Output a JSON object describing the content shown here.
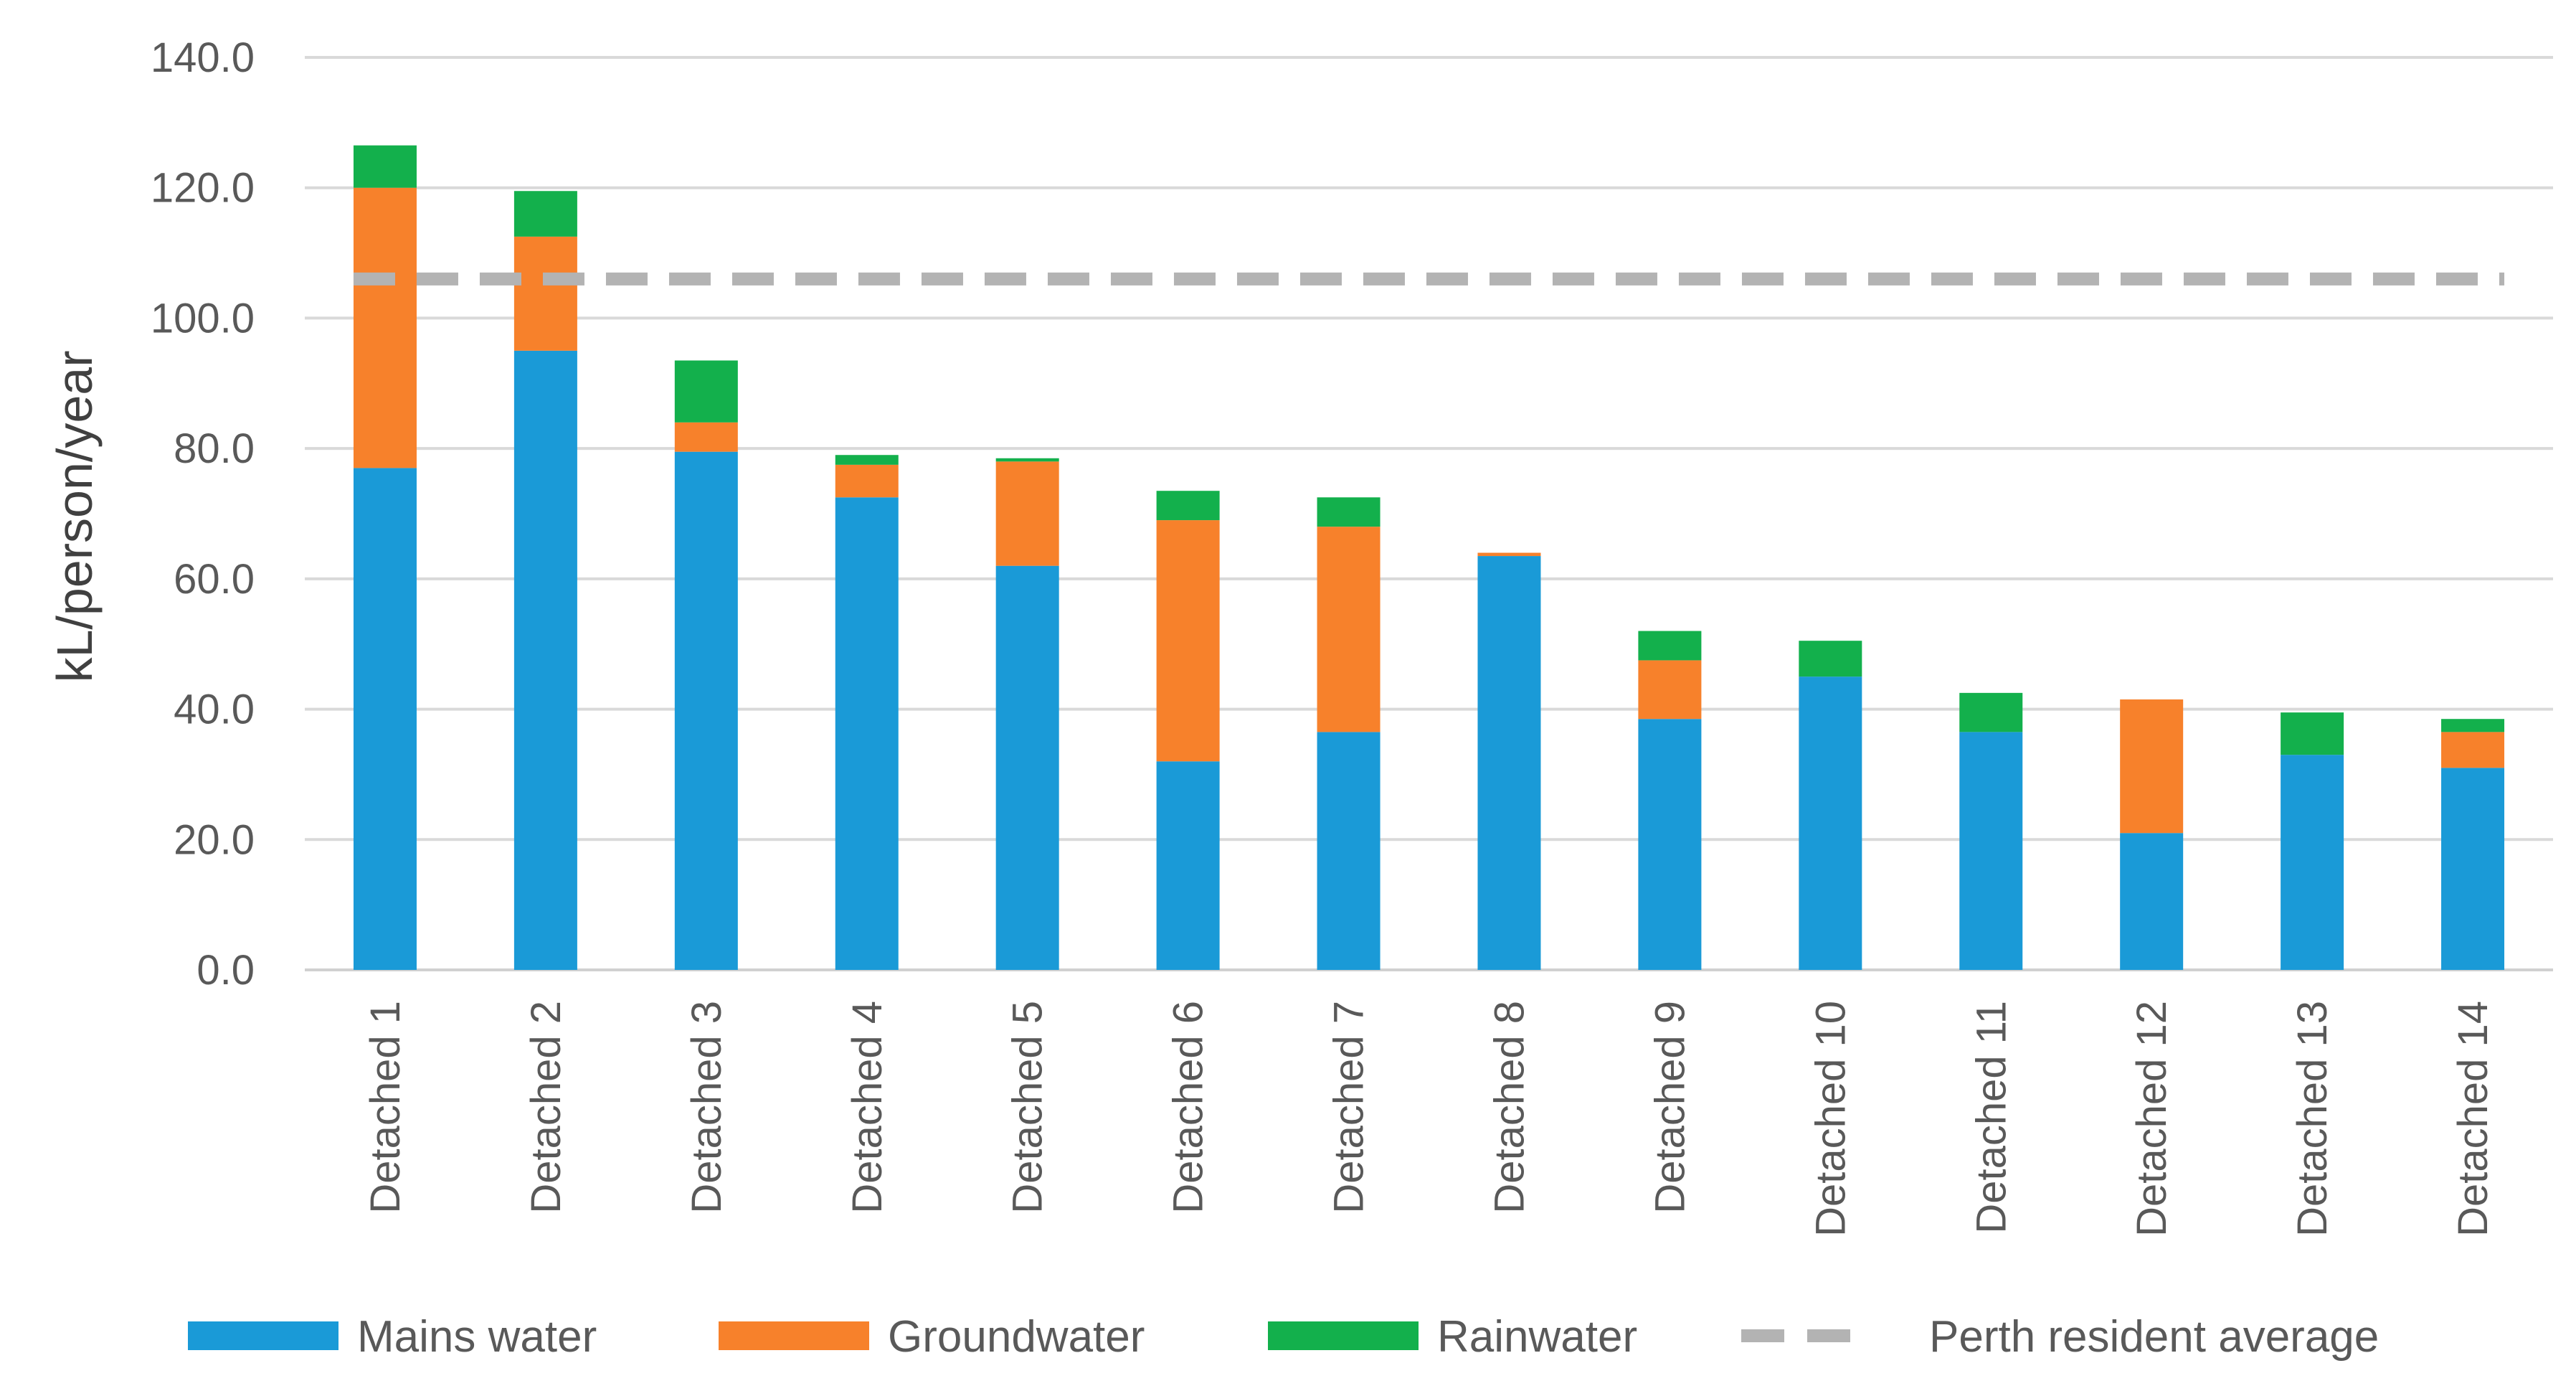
{
  "chart_data": {
    "type": "bar",
    "stacked": true,
    "title": "",
    "xlabel": "",
    "ylabel": "kL/person/year",
    "ylim": [
      0,
      140
    ],
    "yticks": [
      "0.0",
      "20.0",
      "40.0",
      "60.0",
      "80.0",
      "100.0",
      "120.0",
      "140.0"
    ],
    "grid": true,
    "legend_position": "bottom",
    "categories": [
      "Detached 1",
      "Detached 2",
      "Detached 3",
      "Detached 4",
      "Detached 5",
      "Detached 6",
      "Detached 7",
      "Detached 8",
      "Detached 9",
      "Detached 10",
      "Detached 11",
      "Detached 12",
      "Detached 13",
      "Detached 14"
    ],
    "series": [
      {
        "name": "Mains water",
        "color": "#1a9ad7",
        "values": [
          77,
          95,
          79.5,
          72.5,
          62,
          32,
          36.5,
          63.5,
          38.5,
          45,
          36.5,
          21,
          33,
          31
        ]
      },
      {
        "name": "Groundwater",
        "color": "#f7812b",
        "values": [
          43,
          17.5,
          4.5,
          5,
          16,
          37,
          31.5,
          0.5,
          9,
          0,
          0,
          20.5,
          0,
          5.5
        ]
      },
      {
        "name": "Rainwater",
        "color": "#13b04c",
        "values": [
          6.5,
          7,
          9.5,
          1.5,
          0.5,
          4.5,
          4.5,
          0,
          4.5,
          5.5,
          6,
          0,
          6.5,
          2
        ]
      }
    ],
    "reference_line": {
      "name": "Perth resident average",
      "value": 106,
      "color": "#b3b3b3",
      "style": "dashed"
    }
  },
  "legend": [
    {
      "label": "Mains water",
      "color": "#1a9ad7",
      "kind": "bar"
    },
    {
      "label": "Groundwater",
      "color": "#f7812b",
      "kind": "bar"
    },
    {
      "label": "Rainwater",
      "color": "#13b04c",
      "kind": "bar"
    },
    {
      "label": "Perth resident average",
      "color": "#b3b3b3",
      "kind": "dash"
    }
  ]
}
